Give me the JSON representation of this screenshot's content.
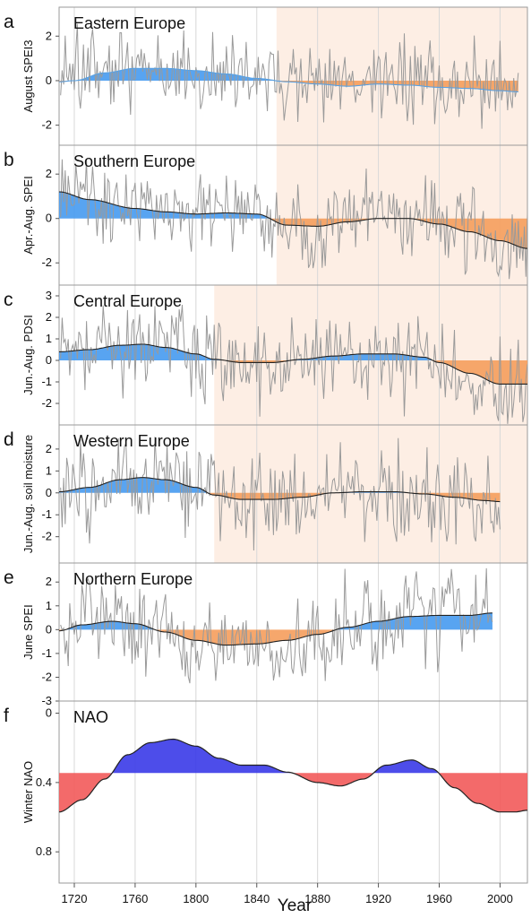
{
  "chart_data": {
    "type": "area",
    "xlabel": "Year",
    "x_ticks": [
      1720,
      1760,
      1800,
      1840,
      1880,
      1920,
      1960,
      2000
    ],
    "xlim": [
      1710,
      2018
    ],
    "grid": "vertical",
    "colors": {
      "wet": "#4a9cf0",
      "dry": "#f5a060",
      "shade": "#fdeee4",
      "nao_positive": "#3a3ae8",
      "nao_negative": "#f25a5a",
      "raw_series": "#9a9a9a"
    },
    "panels": [
      {
        "letter": "a",
        "title": "Eastern Europe",
        "ylabel": "August SPEI3",
        "ylim": [
          -2.9,
          3.3
        ],
        "yticks": [
          -2,
          0,
          2
        ],
        "yticklabels": [
          "-2",
          "0",
          "2"
        ],
        "shade_from": 1853,
        "baseline": 0,
        "smooth_edge": false,
        "data_end": 2012,
        "smooth": [
          [
            1710,
            -0.05
          ],
          [
            1720,
            0.0
          ],
          [
            1740,
            0.35
          ],
          [
            1760,
            0.55
          ],
          [
            1780,
            0.55
          ],
          [
            1800,
            0.45
          ],
          [
            1820,
            0.3
          ],
          [
            1840,
            0.1
          ],
          [
            1860,
            -0.05
          ],
          [
            1880,
            -0.15
          ],
          [
            1900,
            -0.25
          ],
          [
            1920,
            -0.15
          ],
          [
            1940,
            -0.2
          ],
          [
            1960,
            -0.3
          ],
          [
            1980,
            -0.35
          ],
          [
            2000,
            -0.45
          ],
          [
            2012,
            -0.5
          ]
        ],
        "noise_seed": 11,
        "noise_amp": 0.95
      },
      {
        "letter": "b",
        "title": "Southern Europe",
        "ylabel": "Apr.-Aug. SPEI",
        "ylim": [
          -3.0,
          3.3
        ],
        "yticks": [
          -2,
          0,
          2
        ],
        "yticklabels": [
          "-2",
          "0",
          "2"
        ],
        "shade_from": 1853,
        "baseline": 0,
        "smooth_edge": true,
        "data_end": 2018,
        "smooth": [
          [
            1710,
            1.2
          ],
          [
            1730,
            0.85
          ],
          [
            1760,
            0.45
          ],
          [
            1780,
            0.3
          ],
          [
            1800,
            0.2
          ],
          [
            1820,
            0.25
          ],
          [
            1840,
            0.2
          ],
          [
            1860,
            -0.3
          ],
          [
            1880,
            -0.35
          ],
          [
            1900,
            -0.15
          ],
          [
            1920,
            0.0
          ],
          [
            1940,
            0.0
          ],
          [
            1960,
            -0.25
          ],
          [
            1980,
            -0.6
          ],
          [
            2000,
            -1.0
          ],
          [
            2018,
            -1.35
          ]
        ],
        "noise_seed": 23,
        "noise_amp": 0.9
      },
      {
        "letter": "c",
        "title": "Central Europe",
        "ylabel": "Jun.-Aug. PDSI",
        "ylim": [
          -3.0,
          3.5
        ],
        "yticks": [
          -2,
          -1,
          0,
          1,
          2,
          3
        ],
        "yticklabels": [
          "-2",
          "-1",
          "0",
          "1",
          "2",
          "3"
        ],
        "shade_from": 1812,
        "baseline": 0,
        "smooth_edge": true,
        "data_end": 2018,
        "smooth": [
          [
            1710,
            0.4
          ],
          [
            1730,
            0.5
          ],
          [
            1750,
            0.7
          ],
          [
            1765,
            0.75
          ],
          [
            1780,
            0.6
          ],
          [
            1800,
            0.3
          ],
          [
            1812,
            0.05
          ],
          [
            1830,
            -0.1
          ],
          [
            1850,
            -0.1
          ],
          [
            1870,
            0.05
          ],
          [
            1890,
            0.2
          ],
          [
            1910,
            0.3
          ],
          [
            1930,
            0.3
          ],
          [
            1950,
            0.15
          ],
          [
            1960,
            -0.1
          ],
          [
            1980,
            -0.6
          ],
          [
            2000,
            -1.1
          ],
          [
            2018,
            -1.1
          ]
        ],
        "noise_seed": 37,
        "noise_amp": 1.0
      },
      {
        "letter": "d",
        "title": "Western Europe",
        "ylabel": "Jun.-Aug. soil moisture",
        "ylim": [
          -3.2,
          3.1
        ],
        "yticks": [
          -2,
          -1,
          0,
          1,
          2
        ],
        "yticklabels": [
          "-2",
          "-1",
          "0",
          "1",
          "2"
        ],
        "shade_from": 1812,
        "baseline": 0,
        "smooth_edge": false,
        "data_end": 2000,
        "smooth": [
          [
            1710,
            0.05
          ],
          [
            1730,
            0.25
          ],
          [
            1750,
            0.6
          ],
          [
            1765,
            0.7
          ],
          [
            1780,
            0.6
          ],
          [
            1800,
            0.25
          ],
          [
            1812,
            -0.1
          ],
          [
            1830,
            -0.3
          ],
          [
            1850,
            -0.3
          ],
          [
            1870,
            -0.2
          ],
          [
            1890,
            0.0
          ],
          [
            1910,
            0.05
          ],
          [
            1930,
            0.05
          ],
          [
            1950,
            -0.05
          ],
          [
            1970,
            -0.2
          ],
          [
            1990,
            -0.35
          ],
          [
            2000,
            -0.4
          ]
        ],
        "noise_seed": 53,
        "noise_amp": 1.0
      },
      {
        "letter": "e",
        "title": "Northern Europe",
        "ylabel": "June SPEI",
        "ylim": [
          -3.0,
          2.8
        ],
        "yticks": [
          -3,
          -2,
          -1,
          0,
          1,
          2
        ],
        "yticklabels": [
          "-3",
          "-2",
          "-1",
          "0",
          "1",
          "2"
        ],
        "shade_from": null,
        "baseline": 0,
        "smooth_edge": false,
        "data_end": 1995,
        "smooth": [
          [
            1710,
            -0.05
          ],
          [
            1725,
            0.2
          ],
          [
            1745,
            0.35
          ],
          [
            1760,
            0.25
          ],
          [
            1780,
            -0.1
          ],
          [
            1800,
            -0.45
          ],
          [
            1820,
            -0.65
          ],
          [
            1840,
            -0.6
          ],
          [
            1860,
            -0.45
          ],
          [
            1880,
            -0.2
          ],
          [
            1900,
            0.1
          ],
          [
            1920,
            0.35
          ],
          [
            1940,
            0.55
          ],
          [
            1960,
            0.6
          ],
          [
            1980,
            0.6
          ],
          [
            1995,
            0.7
          ]
        ],
        "noise_seed": 71,
        "noise_amp": 0.95
      },
      {
        "letter": "f",
        "title": "NAO",
        "ylabel": "Winter NAO",
        "ylim": [
          0.98,
          -0.07
        ],
        "yticks": [
          0,
          0.4,
          0.8
        ],
        "yticklabels": [
          "0",
          "0.4",
          "0.8"
        ],
        "shade_from": null,
        "baseline": 0.345,
        "smooth_edge": false,
        "data_end": 2018,
        "smooth": [
          [
            1710,
            0.57
          ],
          [
            1725,
            0.5
          ],
          [
            1740,
            0.38
          ],
          [
            1755,
            0.24
          ],
          [
            1770,
            0.17
          ],
          [
            1785,
            0.15
          ],
          [
            1800,
            0.19
          ],
          [
            1815,
            0.26
          ],
          [
            1830,
            0.3
          ],
          [
            1845,
            0.3
          ],
          [
            1860,
            0.34
          ],
          [
            1880,
            0.4
          ],
          [
            1895,
            0.42
          ],
          [
            1910,
            0.38
          ],
          [
            1925,
            0.3
          ],
          [
            1942,
            0.27
          ],
          [
            1955,
            0.32
          ],
          [
            1970,
            0.43
          ],
          [
            1985,
            0.52
          ],
          [
            2000,
            0.57
          ],
          [
            2010,
            0.57
          ],
          [
            2018,
            0.56
          ]
        ],
        "noise_seed": 0,
        "noise_amp": 0
      }
    ]
  }
}
